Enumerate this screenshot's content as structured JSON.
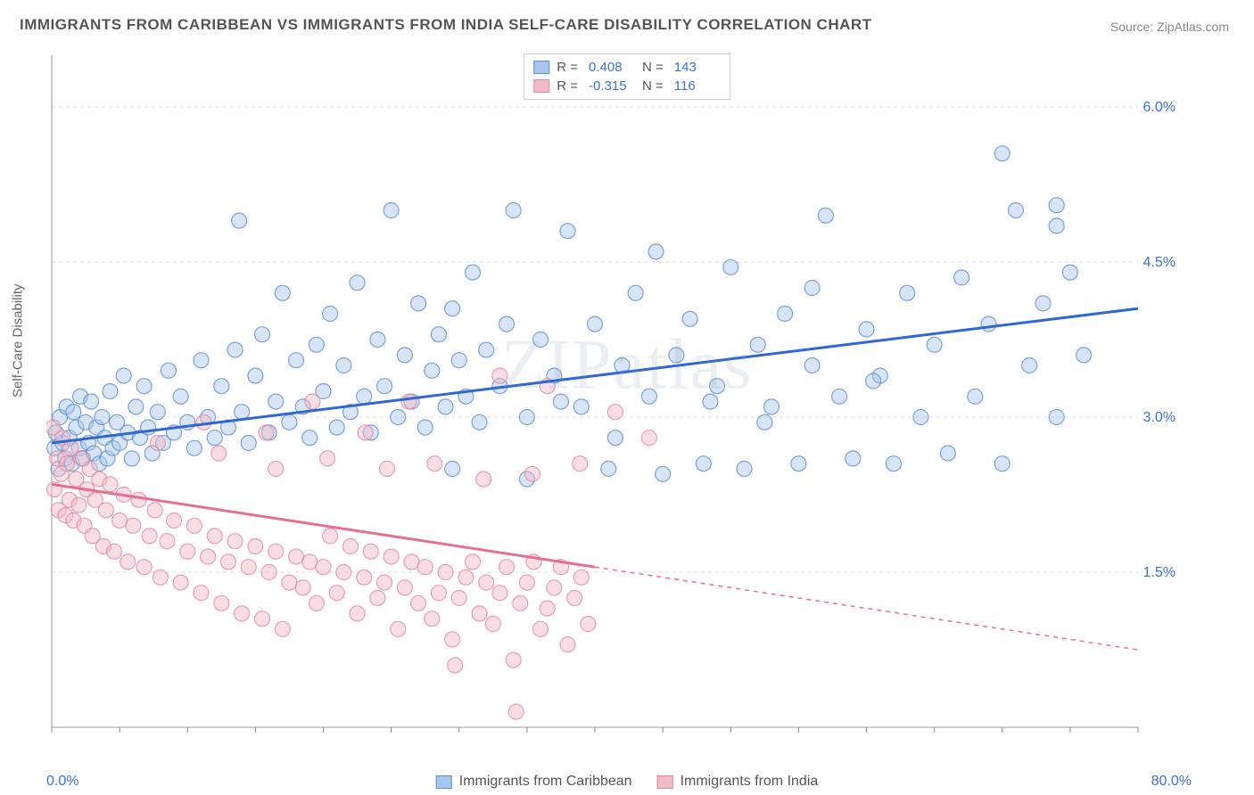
{
  "title": "IMMIGRANTS FROM CARIBBEAN VS IMMIGRANTS FROM INDIA SELF-CARE DISABILITY CORRELATION CHART",
  "source": "Source: ZipAtlas.com",
  "watermark": "ZIPatlas",
  "chart": {
    "type": "scatter",
    "ylabel": "Self-Care Disability",
    "xlim": [
      0,
      80
    ],
    "ylim": [
      0,
      6.5
    ],
    "xtick_min_label": "0.0%",
    "xtick_max_label": "80.0%",
    "yticks": [
      1.5,
      3.0,
      4.5,
      6.0
    ],
    "ytick_labels": [
      "1.5%",
      "3.0%",
      "4.5%",
      "6.0%"
    ],
    "background_color": "#ffffff",
    "grid_color": "#dddddd",
    "axis_color": "#999999",
    "tick_color": "#888888",
    "ytick_label_color": "#3b6fd8",
    "marker_radius": 8.5,
    "marker_opacity": 0.45,
    "trend_line_width": 3,
    "series": [
      {
        "name": "Immigrants from Caribbean",
        "color_fill": "#a8c5ec",
        "color_stroke": "#5b8fd6",
        "trend_color": "#2f68d0",
        "R": "0.408",
        "N": "143",
        "trend": {
          "x1": 0,
          "y1": 2.75,
          "x2": 80,
          "y2": 4.05,
          "dashed_from": 80
        },
        "points": [
          [
            0.2,
            2.7
          ],
          [
            0.3,
            2.85
          ],
          [
            0.5,
            2.5
          ],
          [
            0.6,
            3.0
          ],
          [
            0.8,
            2.75
          ],
          [
            1.0,
            2.6
          ],
          [
            1.1,
            3.1
          ],
          [
            1.3,
            2.8
          ],
          [
            1.5,
            2.55
          ],
          [
            1.6,
            3.05
          ],
          [
            1.8,
            2.9
          ],
          [
            2.0,
            2.7
          ],
          [
            2.1,
            3.2
          ],
          [
            2.3,
            2.6
          ],
          [
            2.5,
            2.95
          ],
          [
            2.7,
            2.75
          ],
          [
            2.9,
            3.15
          ],
          [
            3.1,
            2.65
          ],
          [
            3.3,
            2.9
          ],
          [
            3.5,
            2.55
          ],
          [
            3.7,
            3.0
          ],
          [
            3.9,
            2.8
          ],
          [
            4.1,
            2.6
          ],
          [
            4.3,
            3.25
          ],
          [
            4.5,
            2.7
          ],
          [
            4.8,
            2.95
          ],
          [
            5.0,
            2.75
          ],
          [
            5.3,
            3.4
          ],
          [
            5.6,
            2.85
          ],
          [
            5.9,
            2.6
          ],
          [
            6.2,
            3.1
          ],
          [
            6.5,
            2.8
          ],
          [
            6.8,
            3.3
          ],
          [
            7.1,
            2.9
          ],
          [
            7.4,
            2.65
          ],
          [
            7.8,
            3.05
          ],
          [
            8.2,
            2.75
          ],
          [
            8.6,
            3.45
          ],
          [
            9.0,
            2.85
          ],
          [
            9.5,
            3.2
          ],
          [
            10.0,
            2.95
          ],
          [
            10.5,
            2.7
          ],
          [
            11.0,
            3.55
          ],
          [
            11.5,
            3.0
          ],
          [
            12.0,
            2.8
          ],
          [
            12.5,
            3.3
          ],
          [
            13.0,
            2.9
          ],
          [
            13.5,
            3.65
          ],
          [
            14.0,
            3.05
          ],
          [
            14.5,
            2.75
          ],
          [
            15.0,
            3.4
          ],
          [
            15.5,
            3.8
          ],
          [
            16.0,
            2.85
          ],
          [
            16.5,
            3.15
          ],
          [
            17.0,
            4.2
          ],
          [
            17.5,
            2.95
          ],
          [
            18.0,
            3.55
          ],
          [
            18.5,
            3.1
          ],
          [
            19.0,
            2.8
          ],
          [
            19.5,
            3.7
          ],
          [
            20.0,
            3.25
          ],
          [
            20.5,
            4.0
          ],
          [
            21.0,
            2.9
          ],
          [
            21.5,
            3.5
          ],
          [
            22.0,
            3.05
          ],
          [
            22.5,
            4.3
          ],
          [
            23.0,
            3.2
          ],
          [
            23.5,
            2.85
          ],
          [
            24.0,
            3.75
          ],
          [
            24.5,
            3.3
          ],
          [
            25.0,
            5.0
          ],
          [
            25.5,
            3.0
          ],
          [
            26.0,
            3.6
          ],
          [
            26.5,
            3.15
          ],
          [
            27.0,
            4.1
          ],
          [
            27.5,
            2.9
          ],
          [
            28.0,
            3.45
          ],
          [
            28.5,
            3.8
          ],
          [
            29.0,
            3.1
          ],
          [
            29.5,
            2.5
          ],
          [
            30.0,
            3.55
          ],
          [
            30.5,
            3.2
          ],
          [
            31.0,
            4.4
          ],
          [
            31.5,
            2.95
          ],
          [
            32.0,
            3.65
          ],
          [
            33.0,
            3.3
          ],
          [
            34.0,
            5.0
          ],
          [
            35.0,
            3.0
          ],
          [
            35.0,
            2.4
          ],
          [
            36.0,
            3.75
          ],
          [
            37.0,
            3.4
          ],
          [
            38.0,
            4.8
          ],
          [
            39.0,
            3.1
          ],
          [
            40.0,
            3.9
          ],
          [
            41.0,
            2.5
          ],
          [
            42.0,
            3.5
          ],
          [
            43.0,
            4.2
          ],
          [
            44.0,
            3.2
          ],
          [
            45.0,
            2.45
          ],
          [
            46.0,
            3.6
          ],
          [
            47.0,
            3.95
          ],
          [
            48.0,
            2.55
          ],
          [
            49.0,
            3.3
          ],
          [
            50.0,
            4.45
          ],
          [
            51.0,
            2.5
          ],
          [
            52.0,
            3.7
          ],
          [
            53.0,
            3.1
          ],
          [
            54.0,
            4.0
          ],
          [
            55.0,
            2.55
          ],
          [
            56.0,
            3.5
          ],
          [
            57.0,
            4.95
          ],
          [
            58.0,
            3.2
          ],
          [
            59.0,
            2.6
          ],
          [
            60.0,
            3.85
          ],
          [
            61.0,
            3.4
          ],
          [
            62.0,
            2.55
          ],
          [
            63.0,
            4.2
          ],
          [
            64.0,
            3.0
          ],
          [
            65.0,
            3.7
          ],
          [
            66.0,
            2.65
          ],
          [
            67.0,
            4.35
          ],
          [
            68.0,
            3.2
          ],
          [
            69.0,
            3.9
          ],
          [
            70.0,
            2.55
          ],
          [
            71.0,
            5.0
          ],
          [
            72.0,
            3.5
          ],
          [
            73.0,
            4.1
          ],
          [
            74.0,
            3.0
          ],
          [
            75.0,
            4.4
          ],
          [
            76.0,
            3.6
          ],
          [
            70.0,
            5.55
          ],
          [
            74.0,
            5.05
          ],
          [
            74.0,
            4.85
          ],
          [
            56.0,
            4.25
          ],
          [
            60.5,
            3.35
          ],
          [
            44.5,
            4.6
          ],
          [
            48.5,
            3.15
          ],
          [
            52.5,
            2.95
          ],
          [
            37.5,
            3.15
          ],
          [
            41.5,
            2.8
          ],
          [
            33.5,
            3.9
          ],
          [
            29.5,
            4.05
          ],
          [
            13.8,
            4.9
          ]
        ]
      },
      {
        "name": "Immigrants from India",
        "color_fill": "#f2b9c6",
        "color_stroke": "#e48aa0",
        "trend_color": "#e56f8f",
        "R": "-0.315",
        "N": "116",
        "trend": {
          "x1": 0,
          "y1": 2.35,
          "x2": 40,
          "y2": 1.55,
          "dashed_from": 40,
          "x3": 80,
          "y3": 0.75
        },
        "points": [
          [
            0.1,
            2.9
          ],
          [
            0.2,
            2.3
          ],
          [
            0.4,
            2.6
          ],
          [
            0.5,
            2.1
          ],
          [
            0.7,
            2.45
          ],
          [
            0.8,
            2.8
          ],
          [
            1.0,
            2.05
          ],
          [
            1.1,
            2.55
          ],
          [
            1.3,
            2.2
          ],
          [
            1.4,
            2.7
          ],
          [
            1.6,
            2.0
          ],
          [
            1.8,
            2.4
          ],
          [
            2.0,
            2.15
          ],
          [
            2.2,
            2.6
          ],
          [
            2.4,
            1.95
          ],
          [
            2.6,
            2.3
          ],
          [
            2.8,
            2.5
          ],
          [
            3.0,
            1.85
          ],
          [
            3.2,
            2.2
          ],
          [
            3.5,
            2.4
          ],
          [
            3.8,
            1.75
          ],
          [
            4.0,
            2.1
          ],
          [
            4.3,
            2.35
          ],
          [
            4.6,
            1.7
          ],
          [
            5.0,
            2.0
          ],
          [
            5.3,
            2.25
          ],
          [
            5.6,
            1.6
          ],
          [
            6.0,
            1.95
          ],
          [
            6.4,
            2.2
          ],
          [
            6.8,
            1.55
          ],
          [
            7.2,
            1.85
          ],
          [
            7.6,
            2.1
          ],
          [
            8.0,
            1.45
          ],
          [
            8.5,
            1.8
          ],
          [
            9.0,
            2.0
          ],
          [
            9.5,
            1.4
          ],
          [
            10.0,
            1.7
          ],
          [
            10.5,
            1.95
          ],
          [
            11.0,
            1.3
          ],
          [
            11.5,
            1.65
          ],
          [
            12.0,
            1.85
          ],
          [
            12.5,
            1.2
          ],
          [
            13.0,
            1.6
          ],
          [
            13.5,
            1.8
          ],
          [
            14.0,
            1.1
          ],
          [
            14.5,
            1.55
          ],
          [
            15.0,
            1.75
          ],
          [
            15.5,
            1.05
          ],
          [
            16.0,
            1.5
          ],
          [
            16.5,
            1.7
          ],
          [
            17.0,
            0.95
          ],
          [
            17.5,
            1.4
          ],
          [
            18.0,
            1.65
          ],
          [
            18.5,
            1.35
          ],
          [
            19.0,
            1.6
          ],
          [
            19.5,
            1.2
          ],
          [
            20.0,
            1.55
          ],
          [
            20.5,
            1.85
          ],
          [
            21.0,
            1.3
          ],
          [
            21.5,
            1.5
          ],
          [
            22.0,
            1.75
          ],
          [
            22.5,
            1.1
          ],
          [
            23.0,
            1.45
          ],
          [
            23.5,
            1.7
          ],
          [
            24.0,
            1.25
          ],
          [
            24.5,
            1.4
          ],
          [
            25.0,
            1.65
          ],
          [
            25.5,
            0.95
          ],
          [
            26.0,
            1.35
          ],
          [
            26.5,
            1.6
          ],
          [
            27.0,
            1.2
          ],
          [
            27.5,
            1.55
          ],
          [
            28.0,
            1.05
          ],
          [
            28.5,
            1.3
          ],
          [
            29.0,
            1.5
          ],
          [
            29.5,
            0.85
          ],
          [
            30.0,
            1.25
          ],
          [
            30.5,
            1.45
          ],
          [
            31.0,
            1.6
          ],
          [
            31.5,
            1.1
          ],
          [
            32.0,
            1.4
          ],
          [
            32.5,
            1.0
          ],
          [
            33.0,
            1.3
          ],
          [
            33.5,
            1.55
          ],
          [
            34.0,
            0.65
          ],
          [
            34.5,
            1.2
          ],
          [
            35.0,
            1.4
          ],
          [
            35.5,
            1.6
          ],
          [
            36.0,
            0.95
          ],
          [
            36.5,
            1.15
          ],
          [
            37.0,
            1.35
          ],
          [
            37.5,
            1.55
          ],
          [
            38.0,
            0.8
          ],
          [
            38.5,
            1.25
          ],
          [
            39.0,
            1.45
          ],
          [
            39.5,
            1.0
          ],
          [
            11.2,
            2.95
          ],
          [
            15.8,
            2.85
          ],
          [
            20.3,
            2.6
          ],
          [
            24.7,
            2.5
          ],
          [
            28.2,
            2.55
          ],
          [
            31.8,
            2.4
          ],
          [
            35.4,
            2.45
          ],
          [
            38.9,
            2.55
          ],
          [
            41.5,
            3.05
          ],
          [
            44.0,
            2.8
          ],
          [
            33.0,
            3.4
          ],
          [
            36.5,
            3.3
          ],
          [
            26.3,
            3.15
          ],
          [
            29.7,
            0.6
          ],
          [
            16.5,
            2.5
          ],
          [
            7.8,
            2.75
          ],
          [
            12.3,
            2.65
          ],
          [
            34.2,
            0.15
          ],
          [
            19.2,
            3.15
          ],
          [
            23.1,
            2.85
          ]
        ]
      }
    ]
  },
  "legend_bottom": [
    {
      "label": "Immigrants from Caribbean",
      "fill": "#a8c5ec",
      "stroke": "#5b8fd6"
    },
    {
      "label": "Immigrants from India",
      "fill": "#f2b9c6",
      "stroke": "#e48aa0"
    }
  ]
}
